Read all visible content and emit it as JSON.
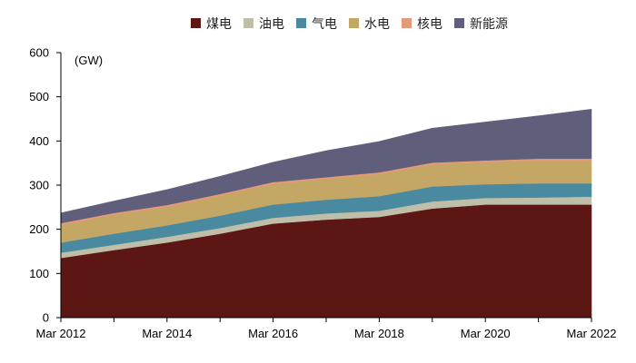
{
  "chart_data": {
    "type": "area",
    "stacked": true,
    "title": "",
    "unit_label": "(GW)",
    "xlabel": "",
    "ylabel": "",
    "x": [
      "Mar 2012",
      "Mar 2013",
      "Mar 2014",
      "Mar 2015",
      "Mar 2016",
      "Mar 2017",
      "Mar 2018",
      "Mar 2019",
      "Mar 2020",
      "Mar 2021",
      "Mar 2022"
    ],
    "x_tick_labels": [
      "Mar 2012",
      "Mar 2014",
      "Mar 2016",
      "Mar 2018",
      "Mar 2020",
      "Mar 2022"
    ],
    "ylim": [
      0,
      600
    ],
    "yticks": [
      0,
      100,
      200,
      300,
      400,
      500,
      600
    ],
    "grid": false,
    "legend_position": "top-center",
    "series": [
      {
        "name": "煤电",
        "color": "#5c1614",
        "values": [
          135,
          153,
          170,
          190,
          213,
          222,
          228,
          247,
          256,
          256,
          256
        ]
      },
      {
        "name": "油电",
        "color": "#bfbfa9",
        "values": [
          12,
          12,
          13,
          13,
          13,
          14,
          14,
          16,
          15,
          16,
          18
        ]
      },
      {
        "name": "气电",
        "color": "#4a8aa0",
        "values": [
          23,
          25,
          26,
          28,
          30,
          31,
          33,
          34,
          31,
          32,
          30
        ]
      },
      {
        "name": "水电",
        "color": "#c4a764",
        "values": [
          40,
          43,
          42,
          45,
          47,
          47,
          50,
          50,
          50,
          52,
          52
        ]
      },
      {
        "name": "核电",
        "color": "#e49a78",
        "values": [
          4,
          4,
          4,
          4,
          4,
          4,
          4,
          4,
          4,
          4,
          4
        ]
      },
      {
        "name": "新能源",
        "color": "#5f5f7c",
        "values": [
          23,
          27,
          35,
          40,
          45,
          60,
          70,
          78,
          87,
          97,
          112
        ]
      }
    ]
  }
}
